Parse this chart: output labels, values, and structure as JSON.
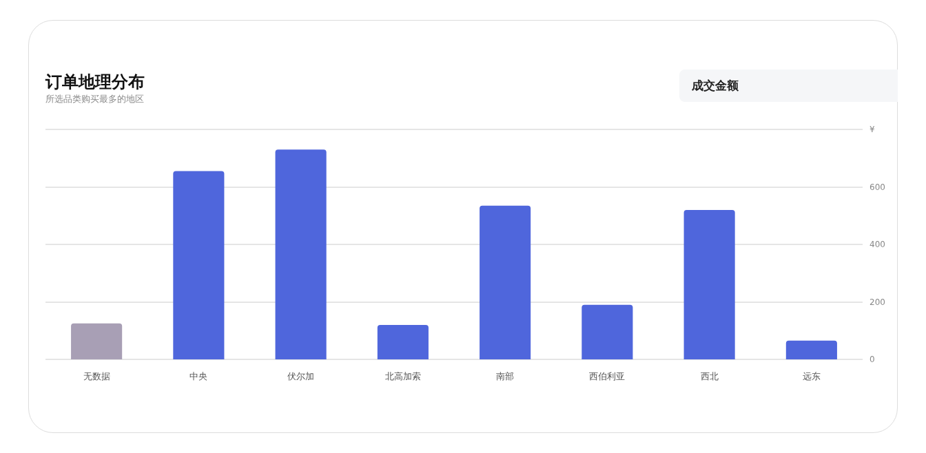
{
  "chart_data": {
    "type": "bar",
    "title": "订单地理分布",
    "subtitle": "所选品类购买最多的地区",
    "annotations": [
      "成交金额"
    ],
    "categories": [
      "无数据",
      "中央",
      "伏尔加",
      "北高加索",
      "南部",
      "西伯利亚",
      "西北",
      "远东"
    ],
    "values": [
      125,
      655,
      730,
      120,
      535,
      190,
      520,
      65
    ],
    "colors": [
      "#a89fb5",
      "#4f66dc",
      "#4f66dc",
      "#4f66dc",
      "#4f66dc",
      "#4f66dc",
      "#4f66dc",
      "#4f66dc"
    ],
    "ylim": [
      0,
      800
    ],
    "yticks": [
      0,
      200,
      400,
      600,
      {
        "value": 800,
        "label": "¥"
      }
    ],
    "grid": "y"
  }
}
